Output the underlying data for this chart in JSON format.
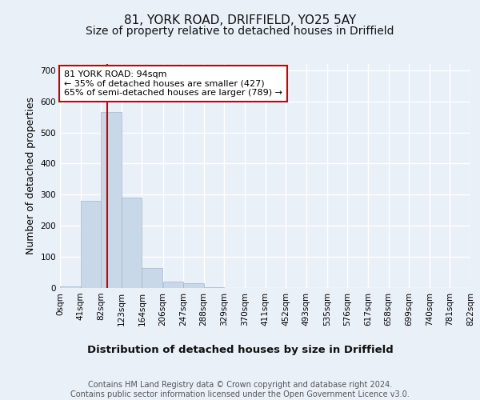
{
  "title_line1": "81, YORK ROAD, DRIFFIELD, YO25 5AY",
  "title_line2": "Size of property relative to detached houses in Driffield",
  "xlabel": "Distribution of detached houses by size in Driffield",
  "ylabel": "Number of detached properties",
  "bin_edges": [
    0,
    41,
    82,
    123,
    164,
    206,
    247,
    288,
    329,
    370,
    411,
    452,
    493,
    535,
    576,
    617,
    658,
    699,
    740,
    781,
    822
  ],
  "bar_heights": [
    5,
    280,
    565,
    290,
    65,
    20,
    15,
    3,
    0,
    0,
    0,
    0,
    0,
    0,
    0,
    0,
    0,
    0,
    0,
    0
  ],
  "bar_color": "#c8d8e8",
  "bar_edgecolor": "#a0b8cc",
  "property_size": 94,
  "vline_color": "#cc0000",
  "annotation_text": "81 YORK ROAD: 94sqm\n← 35% of detached houses are smaller (427)\n65% of semi-detached houses are larger (789) →",
  "annotation_box_color": "#ffffff",
  "annotation_box_edgecolor": "#cc0000",
  "ylim": [
    0,
    720
  ],
  "yticks": [
    0,
    100,
    200,
    300,
    400,
    500,
    600,
    700
  ],
  "background_color": "#eaf0f8",
  "plot_bg_color": "#eaf0f8",
  "grid_color": "#ffffff",
  "footer_text": "Contains HM Land Registry data © Crown copyright and database right 2024.\nContains public sector information licensed under the Open Government Licence v3.0.",
  "title_fontsize": 11,
  "subtitle_fontsize": 10,
  "axis_label_fontsize": 9,
  "tick_fontsize": 7.5,
  "annotation_fontsize": 8,
  "footer_fontsize": 7
}
